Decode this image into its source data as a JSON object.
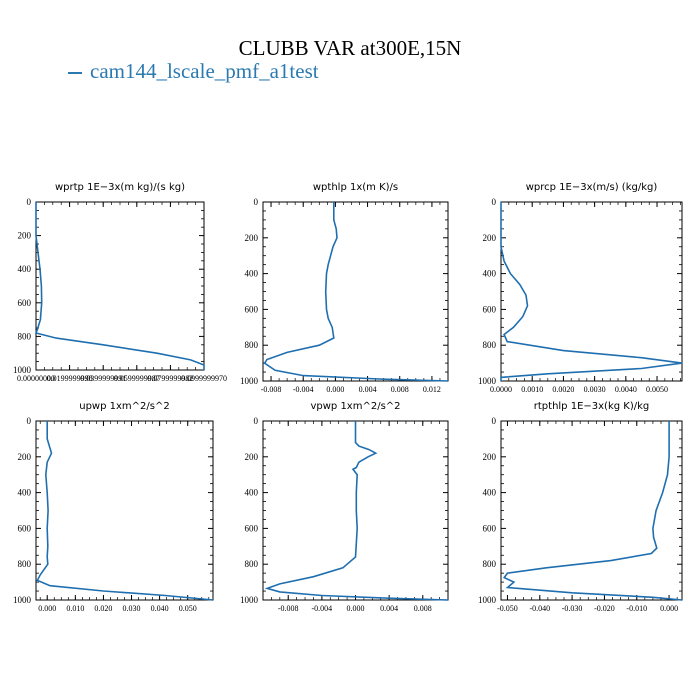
{
  "title": "CLUBB VAR at300E,15N",
  "legend": {
    "series_name": "cam144_lscale_pmf_a1test",
    "color": "#2a79b0"
  },
  "line_color": "#1f6fb0",
  "chart_data": [
    {
      "type": "line",
      "title": "wprtp  1E−3x(m kg)/(s kg)",
      "xlim": [
        0.0,
        0.1
      ],
      "ylim": [
        0,
        1000
      ],
      "y_inverted": true,
      "yticks": [
        0,
        200,
        400,
        600,
        800,
        1000
      ],
      "xticks": [
        0.0,
        0.02,
        0.04,
        0.06,
        0.08,
        0.1
      ],
      "xticklabels": [
        "0.00000000",
        "0.0199999998",
        "0.0399999991",
        "0.0599999987",
        "0.0799999982",
        "0.0999999970"
      ],
      "series": [
        {
          "x": [
            0.0,
            0.0,
            0.0,
            0.0012,
            0.0024,
            0.0032,
            0.0034,
            0.0026,
            0.0008,
            0.0,
            0.012,
            0.04,
            0.072,
            0.092,
            0.1,
            0.1
          ],
          "y": [
            0,
            100,
            200,
            300,
            400,
            500,
            600,
            700,
            760,
            780,
            810,
            850,
            900,
            940,
            970,
            1000
          ]
        }
      ]
    },
    {
      "type": "line",
      "title": "wpthlp  1x(m K)/s",
      "xlim": [
        -0.009,
        0.014
      ],
      "ylim": [
        0,
        1000
      ],
      "y_inverted": true,
      "yticks": [
        0,
        200,
        400,
        600,
        800,
        1000
      ],
      "xticks": [
        -0.008,
        -0.004,
        0.0,
        0.004,
        0.008,
        0.012
      ],
      "xticklabels": [
        "-0.008",
        "-0.004",
        "0.000",
        "0.004",
        "0.008",
        "0.012"
      ],
      "series": [
        {
          "x": [
            -0.0002,
            -0.0002,
            0.0001,
            0.0002,
            -0.0003,
            -0.0006,
            -0.0009,
            -0.0011,
            -0.0012,
            -0.0011,
            -0.0009,
            -0.0004,
            -0.0002,
            -0.002,
            -0.006,
            -0.0085,
            -0.0088,
            -0.0075,
            -0.004,
            0.006,
            0.014
          ],
          "y": [
            0,
            100,
            150,
            200,
            250,
            300,
            350,
            400,
            500,
            600,
            650,
            700,
            760,
            800,
            840,
            880,
            900,
            940,
            970,
            990,
            1000
          ]
        }
      ]
    },
    {
      "type": "line",
      "title": "wprcp  1E−3x(m/s) (kg/kg)",
      "xlim": [
        0.0,
        0.0058
      ],
      "ylim": [
        0,
        1000
      ],
      "y_inverted": true,
      "yticks": [
        0,
        200,
        400,
        600,
        800,
        1000
      ],
      "xticks": [
        0.0,
        0.001,
        0.002,
        0.003,
        0.004,
        0.005
      ],
      "xticklabels": [
        "0.0000",
        "0.0010",
        "0.0020",
        "0.0030",
        "0.0040",
        "0.0050"
      ],
      "series": [
        {
          "x": [
            0.0,
            0.0,
            0.0,
            0.0001,
            0.0003,
            0.0006,
            0.0008,
            0.00085,
            0.0007,
            0.0004,
            0.0001,
            0.0002,
            0.002,
            0.0045,
            0.0058,
            0.0045,
            0.0015,
            0.0,
            0.0
          ],
          "y": [
            0,
            150,
            250,
            330,
            400,
            460,
            520,
            580,
            640,
            700,
            740,
            780,
            830,
            870,
            900,
            930,
            960,
            980,
            1000
          ]
        }
      ]
    },
    {
      "type": "line",
      "title": "upwp  1xm^2/s^2",
      "xlim": [
        -0.004,
        0.059
      ],
      "ylim": [
        0,
        1000
      ],
      "y_inverted": true,
      "yticks": [
        0,
        200,
        400,
        600,
        800,
        1000
      ],
      "xticks": [
        0.0,
        0.01,
        0.02,
        0.03,
        0.04,
        0.05
      ],
      "xticklabels": [
        "0.000",
        "0.010",
        "0.020",
        "0.030",
        "0.040",
        "0.050"
      ],
      "series": [
        {
          "x": [
            0.0,
            0.0,
            0.0015,
            0.0,
            -0.0005,
            0.0,
            0.0003,
            0.0,
            0.0002,
            0.0,
            0.0002,
            -0.0025,
            -0.0035,
            0.001,
            0.02,
            0.042,
            0.059
          ],
          "y": [
            0,
            100,
            180,
            230,
            300,
            400,
            500,
            600,
            700,
            760,
            800,
            860,
            890,
            920,
            950,
            975,
            1000
          ]
        }
      ]
    },
    {
      "type": "line",
      "title": "vpwp  1xm^2/s^2",
      "xlim": [
        -0.011,
        0.011
      ],
      "ylim": [
        0,
        1000
      ],
      "y_inverted": true,
      "yticks": [
        0,
        200,
        400,
        600,
        800,
        1000
      ],
      "xticks": [
        -0.008,
        -0.004,
        0.0,
        0.004,
        0.008
      ],
      "xticklabels": [
        "-0.008",
        "-0.004",
        "0.000",
        "0.004",
        "0.008"
      ],
      "series": [
        {
          "x": [
            0.0,
            0.0,
            0.0004,
            0.0016,
            0.0024,
            0.0015,
            0.0004,
            0.0001,
            -0.0003,
            0.0002,
            0.0001,
            0.0001,
            0.0002,
            0.0,
            -0.0015,
            -0.005,
            -0.009,
            -0.0105,
            -0.009,
            -0.004,
            0.004,
            0.011
          ],
          "y": [
            0,
            120,
            140,
            160,
            180,
            200,
            230,
            260,
            270,
            300,
            400,
            500,
            600,
            760,
            820,
            870,
            910,
            935,
            955,
            975,
            990,
            1000
          ]
        }
      ]
    },
    {
      "type": "line",
      "title": "rtpthlp  1E−3x(kg K)/kg",
      "xlim": [
        -0.052,
        0.004
      ],
      "ylim": [
        0,
        1000
      ],
      "y_inverted": true,
      "yticks": [
        0,
        200,
        400,
        600,
        800,
        1000
      ],
      "xticks": [
        -0.05,
        -0.04,
        -0.03,
        -0.02,
        -0.01,
        0.0
      ],
      "xticklabels": [
        "-0.050",
        "-0.040",
        "-0.030",
        "-0.020",
        "-0.010",
        "0.000"
      ],
      "series": [
        {
          "x": [
            0.0,
            0.0,
            -0.0005,
            -0.002,
            -0.004,
            -0.005,
            -0.0048,
            -0.0038,
            -0.0055,
            -0.018,
            -0.038,
            -0.05,
            -0.051,
            -0.048,
            -0.05,
            -0.03,
            -0.005,
            0.004
          ],
          "y": [
            0,
            200,
            300,
            400,
            500,
            600,
            650,
            710,
            740,
            780,
            820,
            850,
            875,
            900,
            930,
            960,
            985,
            1000
          ]
        }
      ]
    }
  ]
}
